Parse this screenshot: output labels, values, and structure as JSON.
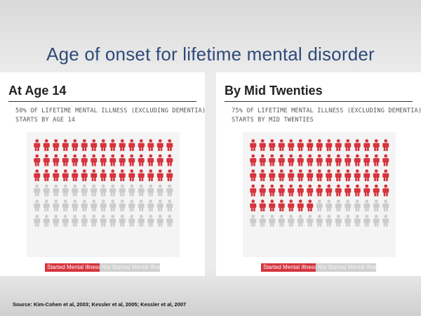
{
  "slide": {
    "title": "Age of onset for lifetime mental disorder",
    "source": "Source: Kim-Cohen et al, 2003; Kessler et al, 2005; Kessler et al, 2007"
  },
  "colors": {
    "started": "#d5343d",
    "not_started": "#cccccc"
  },
  "chart_data": [
    {
      "type": "pictograph",
      "title": "At Age 14",
      "caption_line1": "50% OF LIFETIME MENTAL ILLNESS (EXCLUDING DEMENTIA)",
      "caption_line2": "STARTS BY AGE 14",
      "grid": {
        "rows": 6,
        "cols": 15
      },
      "total_icons": 90,
      "started_icons": 45,
      "percent_started": 50,
      "legend": [
        "Started Mental Illness",
        "Not Started Mental Illness"
      ]
    },
    {
      "type": "pictograph",
      "title": "By Mid Twenties",
      "caption_line1": "75% OF LIFETIME MENTAL ILLNESS (EXCLUDING DEMENTIA)",
      "caption_line2": "STARTS BY MID TWENTIES",
      "grid": {
        "rows": 6,
        "cols": 15
      },
      "total_icons": 90,
      "started_icons": 67,
      "percent_started": 75,
      "legend": [
        "Started Mental Illness",
        "Not Started Mental Illness"
      ]
    }
  ]
}
